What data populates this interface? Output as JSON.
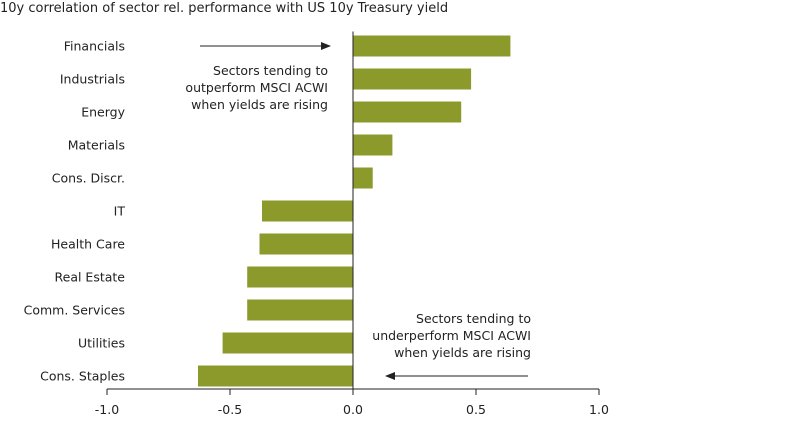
{
  "colors": {
    "bar": "#8c9a2c",
    "axis": "#222222",
    "text": "#222222",
    "arrow": "#222222"
  },
  "chart_data": {
    "type": "bar",
    "orientation": "horizontal",
    "title": "10y correlation of sector rel. performance with US 10y Treasury yield",
    "categories": [
      "Financials",
      "Industrials",
      "Energy",
      "Materials",
      "Cons. Discr.",
      "IT",
      "Health Care",
      "Real Estate",
      "Comm. Services",
      "Utilities",
      "Cons. Staples"
    ],
    "values": [
      0.64,
      0.48,
      0.44,
      0.16,
      0.08,
      -0.37,
      -0.38,
      -0.43,
      -0.43,
      -0.53,
      -0.63
    ],
    "xlim": [
      -1.0,
      1.0
    ],
    "xticks": [
      -1.0,
      -0.5,
      0.0,
      0.5,
      1.0
    ],
    "xtick_labels": [
      "-1.0",
      "-0.5",
      "0.0",
      "0.5",
      "1.0"
    ],
    "grid": false,
    "legend": "none",
    "annotations": [
      {
        "lines": [
          "Sectors tending to",
          "outperform MSCI ACWI",
          "when yields are rising"
        ],
        "arrow": "right"
      },
      {
        "lines": [
          "Sectors tending to",
          "underperform MSCI ACWI",
          "when yields are rising"
        ],
        "arrow": "left"
      }
    ]
  }
}
